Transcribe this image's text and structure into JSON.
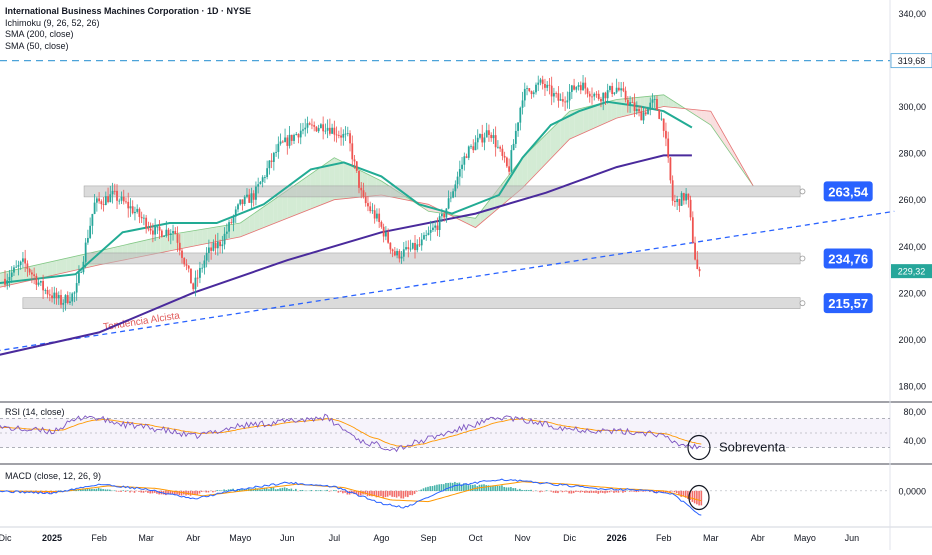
{
  "legend": {
    "title": "International Business Machines Corporation · 1D · NYSE",
    "ind1": "Ichimoku (9, 26, 52, 26)",
    "ind2": "SMA (200, close)",
    "ind3": "SMA (50, close)"
  },
  "rsi_label": "RSI (14, close)",
  "macd_label": "MACD (close, 12, 26, 9)",
  "colors": {
    "up": "#26a69a",
    "down": "#ef5350",
    "sma50": "#22ab94",
    "sma200": "#4a2a9c",
    "trend": "#2962ff",
    "box": "#bdbdbd",
    "label": "#2962ff",
    "cloud_up": "#c8e6c9",
    "cloud_down": "#f8d7d7",
    "rsi": "#7e57c2",
    "signal": "#ff9800"
  },
  "chart_data": {
    "type": "candlestick",
    "title": "International Business Machines Corporation · 1D · NYSE",
    "y_ticks": [
      "340,00",
      "320,00",
      "300,00",
      "280,00",
      "260,00",
      "240,00",
      "220,00",
      "200,00",
      "180,00"
    ],
    "x_ticks": [
      "Dic",
      "2025",
      "Feb",
      "Mar",
      "Abr",
      "Mayo",
      "Jun",
      "Jul",
      "Ago",
      "Sep",
      "Oct",
      "Nov",
      "Dic",
      "2026",
      "Feb",
      "Mar",
      "Abr",
      "Mayo",
      "Jun"
    ],
    "ylim": [
      174,
      344
    ],
    "price_path": [
      {
        "t": 0,
        "p": 226
      },
      {
        "t": 0.4,
        "p": 233
      },
      {
        "t": 0.8,
        "p": 222
      },
      {
        "t": 1.2,
        "p": 216
      },
      {
        "t": 1.5,
        "p": 220
      },
      {
        "t": 1.9,
        "p": 258
      },
      {
        "t": 2.3,
        "p": 262
      },
      {
        "t": 2.7,
        "p": 256
      },
      {
        "t": 3.2,
        "p": 246
      },
      {
        "t": 3.6,
        "p": 247
      },
      {
        "t": 4.0,
        "p": 222
      },
      {
        "t": 4.3,
        "p": 237
      },
      {
        "t": 4.6,
        "p": 242
      },
      {
        "t": 5.0,
        "p": 258
      },
      {
        "t": 5.3,
        "p": 262
      },
      {
        "t": 5.8,
        "p": 282
      },
      {
        "t": 6.3,
        "p": 290
      },
      {
        "t": 6.8,
        "p": 292
      },
      {
        "t": 7.3,
        "p": 286
      },
      {
        "t": 7.6,
        "p": 260
      },
      {
        "t": 7.9,
        "p": 252
      },
      {
        "t": 8.3,
        "p": 236
      },
      {
        "t": 8.8,
        "p": 240
      },
      {
        "t": 9.3,
        "p": 252
      },
      {
        "t": 9.8,
        "p": 280
      },
      {
        "t": 10.3,
        "p": 290
      },
      {
        "t": 10.7,
        "p": 272
      },
      {
        "t": 11.0,
        "p": 305
      },
      {
        "t": 11.4,
        "p": 310
      },
      {
        "t": 11.8,
        "p": 302
      },
      {
        "t": 12.2,
        "p": 310
      },
      {
        "t": 12.6,
        "p": 304
      },
      {
        "t": 13.0,
        "p": 308
      },
      {
        "t": 13.5,
        "p": 296
      },
      {
        "t": 13.8,
        "p": 302
      },
      {
        "t": 14.0,
        "p": 292
      },
      {
        "t": 14.2,
        "p": 258
      },
      {
        "t": 14.5,
        "p": 262
      },
      {
        "t": 14.7,
        "p": 230
      },
      {
        "t": 14.8,
        "p": 229.32
      }
    ],
    "current_price": "229,32",
    "series": [
      {
        "name": "SMA (200, close)",
        "points": [
          [
            -0.2,
            193
          ],
          [
            2.0,
            203
          ],
          [
            4.0,
            220
          ],
          [
            6.0,
            234
          ],
          [
            8.0,
            246
          ],
          [
            10.0,
            254
          ],
          [
            11.5,
            263
          ],
          [
            13.0,
            274
          ],
          [
            14.0,
            279
          ],
          [
            14.6,
            279
          ]
        ]
      },
      {
        "name": "SMA (50, close)",
        "points": [
          [
            -0.2,
            224
          ],
          [
            1.5,
            228
          ],
          [
            2.5,
            246
          ],
          [
            3.5,
            250
          ],
          [
            4.5,
            250
          ],
          [
            5.5,
            258
          ],
          [
            6.5,
            273
          ],
          [
            7.2,
            276
          ],
          [
            8.0,
            270
          ],
          [
            8.8,
            258
          ],
          [
            9.5,
            254
          ],
          [
            10.5,
            262
          ],
          [
            11.0,
            278
          ],
          [
            11.6,
            292
          ],
          [
            12.2,
            298
          ],
          [
            12.8,
            302
          ],
          [
            13.5,
            300
          ],
          [
            14.0,
            298
          ],
          [
            14.6,
            291
          ]
        ]
      }
    ],
    "ichimoku_cloud_a": [
      [
        -0.2,
        228
      ],
      [
        2,
        238
      ],
      [
        3.5,
        245
      ],
      [
        5,
        250
      ],
      [
        6,
        264
      ],
      [
        7,
        278
      ],
      [
        8,
        268
      ],
      [
        9,
        255
      ],
      [
        10,
        252
      ],
      [
        11,
        278
      ],
      [
        12,
        298
      ],
      [
        13,
        303
      ],
      [
        14,
        305
      ],
      [
        15,
        292
      ],
      [
        15.9,
        266
      ]
    ],
    "ichimoku_cloud_b": [
      [
        -0.2,
        222
      ],
      [
        2,
        232
      ],
      [
        3.5,
        238
      ],
      [
        5,
        244
      ],
      [
        6,
        252
      ],
      [
        7,
        260
      ],
      [
        8,
        262
      ],
      [
        9,
        258
      ],
      [
        10,
        248
      ],
      [
        11,
        265
      ],
      [
        12,
        286
      ],
      [
        13,
        295
      ],
      [
        14,
        300
      ],
      [
        15,
        298
      ],
      [
        15.9,
        266
      ]
    ],
    "levels": [
      {
        "value": 263.54,
        "label": "263,54"
      },
      {
        "value": 234.76,
        "label": "234,76"
      },
      {
        "value": 215.57,
        "label": "215,57"
      }
    ],
    "resistance": {
      "value": 319.68,
      "label": "319,68"
    },
    "trendline": {
      "start": [
        -0.2,
        195
      ],
      "end": [
        18.9,
        255
      ],
      "label": "Tendencia Alcista"
    },
    "rsi": {
      "ticks": [
        "80,00",
        "40,00"
      ],
      "path": [
        [
          -0.2,
          58
        ],
        [
          1.0,
          52
        ],
        [
          1.7,
          74
        ],
        [
          2.5,
          62
        ],
        [
          3.3,
          55
        ],
        [
          4.0,
          45
        ],
        [
          5.0,
          60
        ],
        [
          6.0,
          66
        ],
        [
          6.8,
          72
        ],
        [
          7.6,
          38
        ],
        [
          8.3,
          28
        ],
        [
          9.0,
          42
        ],
        [
          10.0,
          62
        ],
        [
          10.6,
          72
        ],
        [
          11.3,
          64
        ],
        [
          12.0,
          56
        ],
        [
          13.0,
          52
        ],
        [
          13.8,
          50
        ],
        [
          14.3,
          35
        ],
        [
          14.8,
          30
        ]
      ],
      "annotation": "Sobreventa"
    },
    "macd": {
      "ticks": [
        "0,0000"
      ],
      "macd_line": [
        [
          -0.2,
          0.0
        ],
        [
          1.0,
          -0.3
        ],
        [
          2.0,
          0.8
        ],
        [
          3.0,
          0.2
        ],
        [
          4.0,
          -1.0
        ],
        [
          5.0,
          0.2
        ],
        [
          6.0,
          1.0
        ],
        [
          7.0,
          0.5
        ],
        [
          8.0,
          -1.5
        ],
        [
          8.5,
          -2.0
        ],
        [
          9.5,
          0.5
        ],
        [
          10.5,
          1.4
        ],
        [
          11.5,
          0.9
        ],
        [
          12.5,
          0.3
        ],
        [
          13.5,
          0.1
        ],
        [
          14.2,
          -0.4
        ],
        [
          14.8,
          -3.0
        ]
      ],
      "signal_line": [
        [
          -0.2,
          0.0
        ],
        [
          1.2,
          -0.1
        ],
        [
          2.2,
          0.6
        ],
        [
          3.2,
          0.3
        ],
        [
          4.2,
          -0.6
        ],
        [
          5.2,
          0.1
        ],
        [
          6.2,
          0.8
        ],
        [
          7.2,
          0.4
        ],
        [
          8.2,
          -1.1
        ],
        [
          9.0,
          -1.3
        ],
        [
          10.0,
          0.3
        ],
        [
          11.0,
          1.1
        ],
        [
          12.0,
          0.8
        ],
        [
          13.0,
          0.3
        ],
        [
          14.0,
          0.0
        ],
        [
          14.8,
          -1.2
        ]
      ]
    }
  }
}
